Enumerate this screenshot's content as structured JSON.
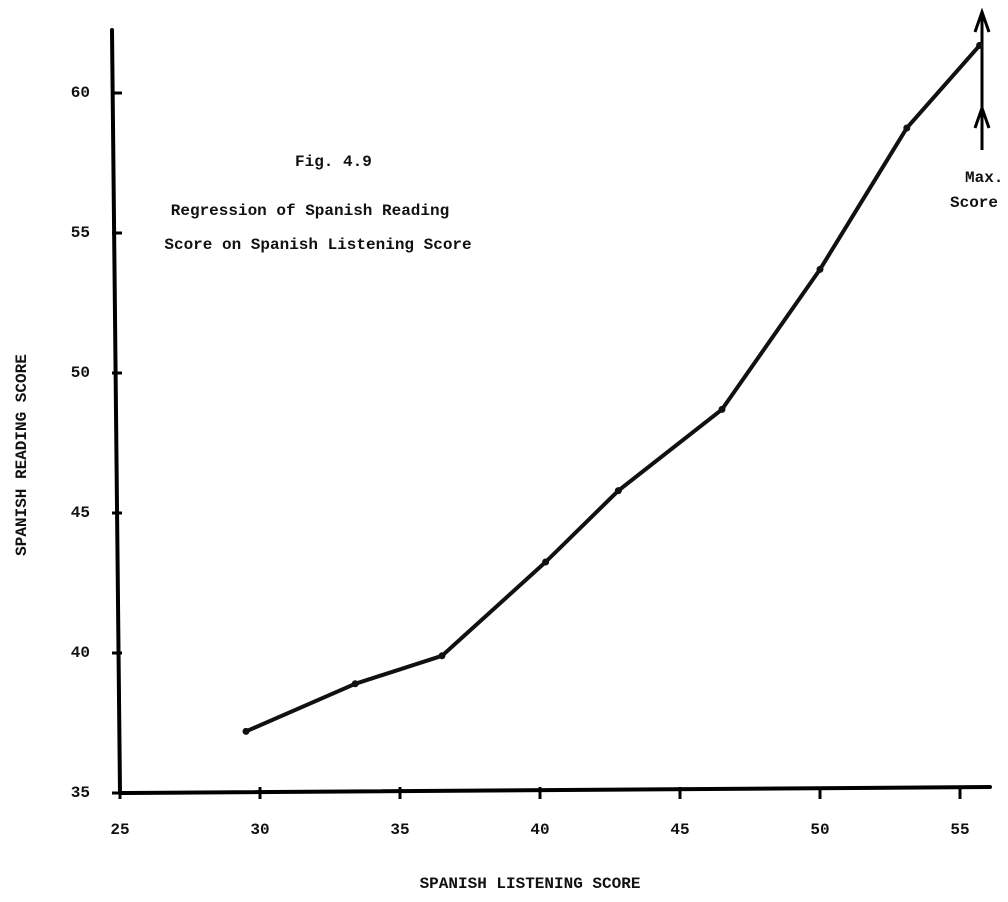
{
  "chart_data": {
    "type": "line",
    "title": "Fig. 4.9",
    "subtitle": [
      "Regression of Spanish Reading",
      "Score on Spanish Listening Score"
    ],
    "annotations": [
      "Max.",
      "Score"
    ],
    "x_label": "SPANISH LISTENING SCORE",
    "y_label": "SPANISH READING SCORE",
    "series": [
      {
        "name": "Regression",
        "color": "#111111",
        "x": [
          29.5,
          33.4,
          36.5,
          40.2,
          42.8,
          46.5,
          50,
          53.1,
          55.7
        ],
        "values": [
          37.2,
          38.9,
          39.9,
          43.25,
          45.8,
          48.7,
          53.7,
          58.75,
          61.7
        ]
      }
    ],
    "xlim": [
      25,
      56.2
    ],
    "xticks": [
      25,
      30,
      35,
      40,
      45,
      50,
      55
    ],
    "ylim": [
      35,
      62.5
    ],
    "yticks": [
      35,
      40,
      45,
      50,
      55,
      60
    ],
    "grid": false
  }
}
